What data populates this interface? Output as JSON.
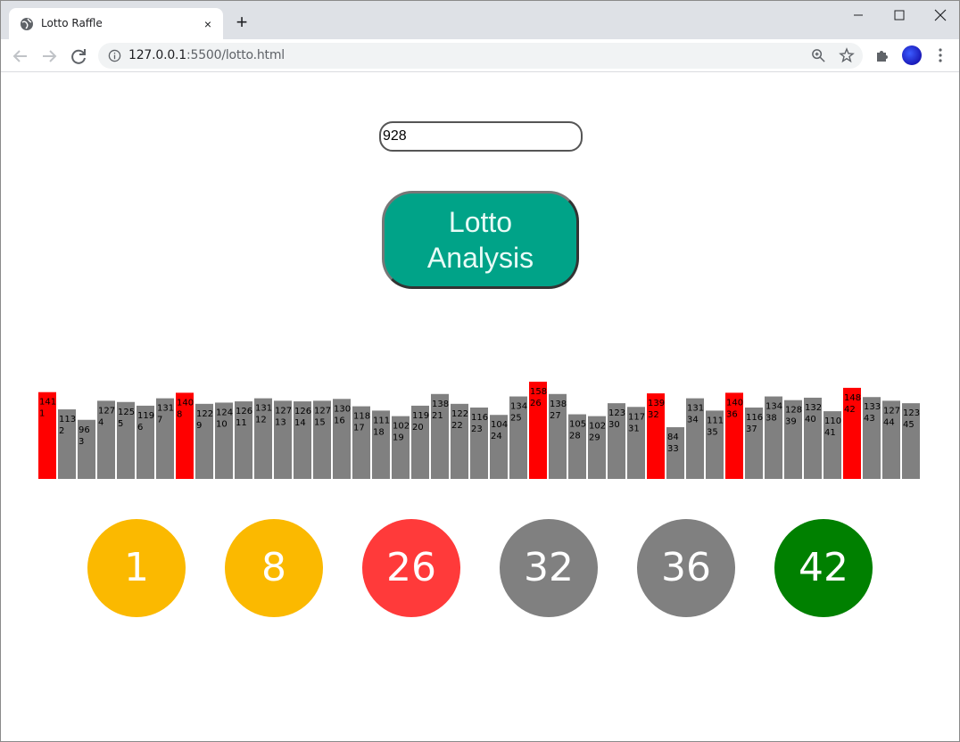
{
  "browser": {
    "tab_title": "Lotto Raffle",
    "tab_close": "×",
    "new_tab": "+",
    "url_host": "127.0.0.1",
    "url_path": ":5500/lotto.html"
  },
  "colors": {
    "button": "#00a388",
    "bar_default": "#808080",
    "bar_highlight": "#ff0000",
    "ball_yellow": "#fbb900",
    "ball_red": "#ff3a3a",
    "ball_gray": "#808080",
    "ball_green": "#008000"
  },
  "input": {
    "value": "928"
  },
  "button": {
    "line1": "Lotto",
    "line2": "Analysis"
  },
  "chart_data": {
    "type": "bar",
    "categories": [
      "1",
      "2",
      "3",
      "4",
      "5",
      "6",
      "7",
      "8",
      "9",
      "10",
      "11",
      "12",
      "13",
      "14",
      "15",
      "16",
      "17",
      "18",
      "19",
      "20",
      "21",
      "22",
      "23",
      "24",
      "25",
      "26",
      "27",
      "28",
      "29",
      "30",
      "31",
      "32",
      "33",
      "34",
      "35",
      "36",
      "37",
      "38",
      "39",
      "40",
      "41",
      "42",
      "43",
      "44",
      "45"
    ],
    "values": [
      141,
      113,
      96,
      127,
      125,
      119,
      131,
      140,
      122,
      124,
      126,
      131,
      127,
      126,
      127,
      130,
      118,
      111,
      102,
      119,
      138,
      122,
      116,
      104,
      134,
      158,
      138,
      105,
      102,
      123,
      117,
      139,
      84,
      131,
      111,
      140,
      116,
      134,
      128,
      132,
      110,
      148,
      133,
      127,
      123
    ],
    "highlighted": [
      "1",
      "8",
      "26",
      "32",
      "36",
      "42"
    ]
  },
  "balls": [
    {
      "number": "1",
      "color": "#fbb900"
    },
    {
      "number": "8",
      "color": "#fbb900"
    },
    {
      "number": "26",
      "color": "#ff3a3a"
    },
    {
      "number": "32",
      "color": "#808080"
    },
    {
      "number": "36",
      "color": "#808080"
    },
    {
      "number": "42",
      "color": "#008000"
    }
  ]
}
